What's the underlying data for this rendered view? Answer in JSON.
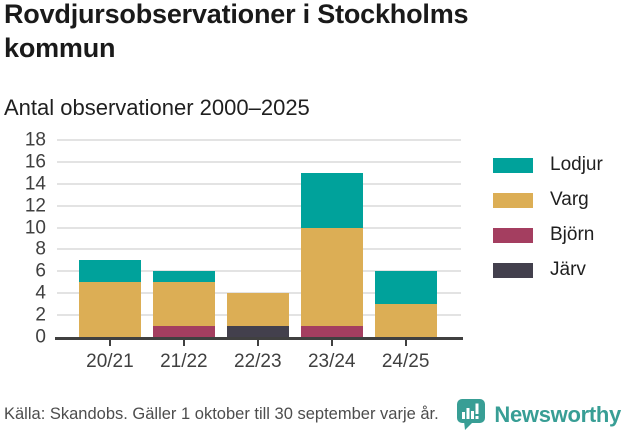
{
  "header": {
    "title": "Rovdjursobservationer i Stockholms kommun",
    "title_line1": "Rovdjursobservationer i Stockholms",
    "title_line2": "kommun",
    "subtitle": "Antal observationer 2000–2025"
  },
  "chart_data": {
    "type": "bar",
    "stacked": true,
    "title": "Rovdjursobservationer i Stockholms kommun",
    "subtitle": "Antal observationer 2000–2025",
    "categories": [
      "20/21",
      "21/22",
      "22/23",
      "23/24",
      "24/25"
    ],
    "series": [
      {
        "name": "Lodjur",
        "color": "#00a29b",
        "values": [
          2,
          1,
          0,
          5,
          3
        ]
      },
      {
        "name": "Varg",
        "color": "#dcae55",
        "values": [
          5,
          4,
          3,
          9,
          3
        ]
      },
      {
        "name": "Björn",
        "color": "#a43e60",
        "values": [
          0,
          1,
          0,
          1,
          0
        ]
      },
      {
        "name": "Järv",
        "color": "#43404d",
        "values": [
          0,
          0,
          1,
          0,
          0
        ]
      }
    ],
    "stack_order_bottom_to_top": [
      "Järv",
      "Björn",
      "Varg",
      "Lodjur"
    ],
    "totals": [
      7,
      6,
      4,
      15,
      6
    ],
    "ylim": [
      0,
      18
    ],
    "yticks": [
      0,
      2,
      4,
      6,
      8,
      10,
      12,
      14,
      16,
      18
    ],
    "grid": true,
    "legend_position": "right"
  },
  "footer": {
    "source": "Källa: Skandobs. Gäller 1 oktober till 30 september varje år.",
    "brand": "Newsworthy"
  },
  "colors": {
    "lodjur_teal": "#00a29b",
    "varg_gold": "#dcae55",
    "bjorn_maroon": "#a43e60",
    "jarv_dark": "#43404d",
    "brand_teal": "#389e95",
    "axis": "#404040",
    "gridline": "#e3e3e3"
  }
}
